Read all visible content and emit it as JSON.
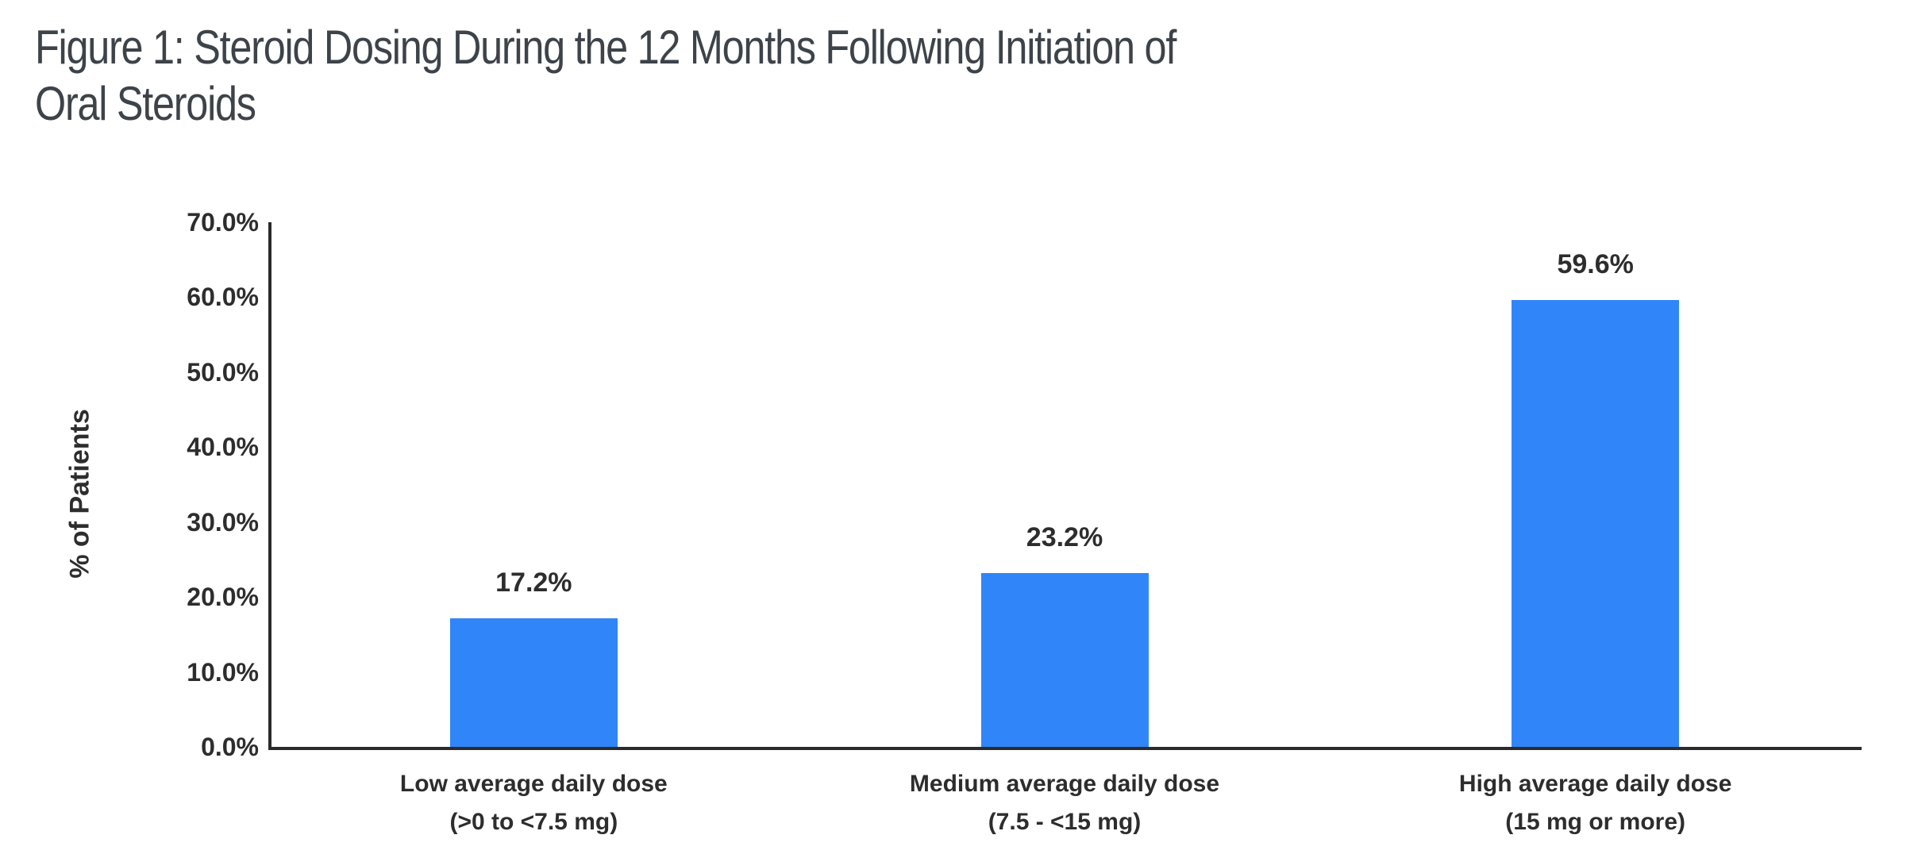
{
  "title_lines": [
    "Figure 1: Steroid Dosing During the 12 Months Following Initiation of",
    "Oral Steroids"
  ],
  "chart_data": {
    "type": "bar",
    "title": "Figure 1: Steroid Dosing During the 12 Months Following Initiation of Oral Steroids",
    "ylabel": "% of Patients",
    "xlabel": "",
    "ylim": [
      0,
      70
    ],
    "ytick_step": 10,
    "ytick_labels": [
      "0.0%",
      "10.0%",
      "20.0%",
      "30.0%",
      "40.0%",
      "50.0%",
      "60.0%",
      "70.0%"
    ],
    "grid": false,
    "legend": false,
    "categories": [
      {
        "line1": "Low average daily dose",
        "line2": "(>0 to <7.5 mg)"
      },
      {
        "line1": "Medium average daily dose",
        "line2": "(7.5 - <15 mg)"
      },
      {
        "line1": "High average daily dose",
        "line2": "(15 mg or more)"
      }
    ],
    "values": [
      17.2,
      23.2,
      59.6
    ],
    "value_labels": [
      "17.2%",
      "23.2%",
      "59.6%"
    ]
  },
  "colors": {
    "bar": "#3086F8",
    "axis": "#2b2b2b",
    "label_text": "#2d2d2d",
    "title_text": "#3d4349",
    "background": "#ffffff"
  }
}
